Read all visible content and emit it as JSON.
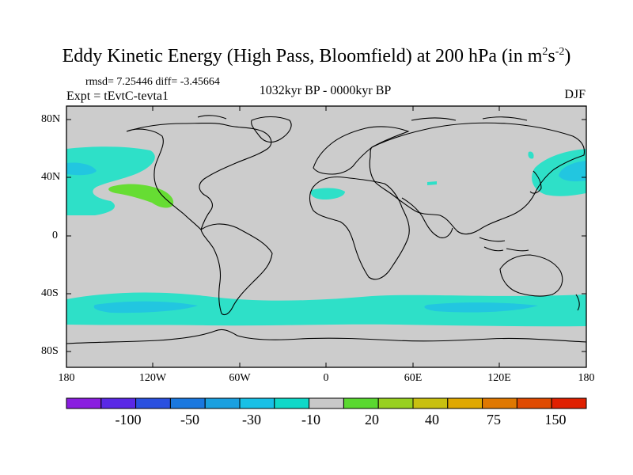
{
  "title": {
    "main": "Eddy Kinetic Energy (High Pass, Bloomfield) at 200 hPa (in m",
    "sup1": "2",
    "mid": "s",
    "sup2": "-2",
    "end": ")"
  },
  "stats": "rmsd= 7.25446 diff= -3.45664",
  "expt": "Expt = tEvtC-tevta1",
  "period": "1032kyr BP - 0000kyr BP",
  "season": "DJF",
  "lat_labels": [
    "80N",
    "40N",
    "0",
    "40S",
    "80S"
  ],
  "lon_labels": [
    "180",
    "120W",
    "60W",
    "0",
    "60E",
    "120E",
    "180"
  ],
  "colorbar": {
    "labels": [
      "-100",
      "-50",
      "-30",
      "-10",
      "20",
      "40",
      "75",
      "150"
    ],
    "colors": [
      "#8a1ee0",
      "#5a28e6",
      "#2a50e0",
      "#1a78e0",
      "#1aa0e0",
      "#18c0e6",
      "#10d8c8",
      "#c8c8c8",
      "#5ad830",
      "#98d020",
      "#c8c010",
      "#e0a800",
      "#e07800",
      "#e04a00",
      "#e02000"
    ]
  },
  "colors": {
    "land_sea_bg": "#cccccc",
    "band_cyan": "#2ee0c8",
    "band_light_blue": "#22c6e0",
    "band_green": "#66dd33"
  }
}
